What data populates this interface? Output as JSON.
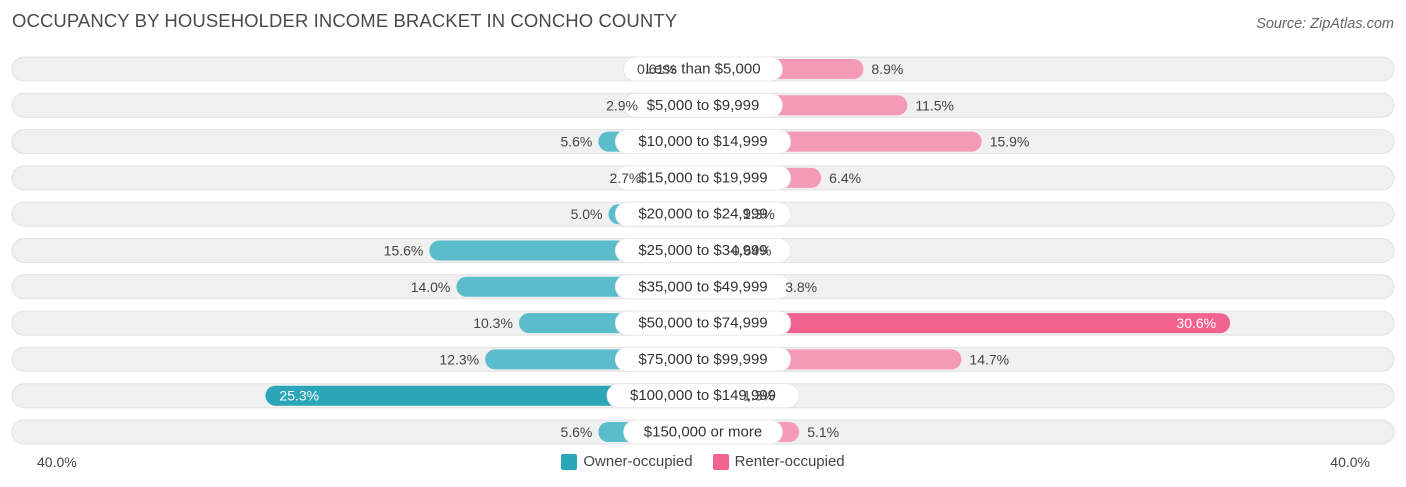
{
  "title": "OCCUPANCY BY HOUSEHOLDER INCOME BRACKET IN CONCHO COUNTY",
  "source": "Source: ZipAtlas.com",
  "axis": {
    "left_label": "40.0%",
    "right_label": "40.0%",
    "max": 40
  },
  "colors": {
    "owner": "#5bbccb",
    "owner_strong": "#2ba6b8",
    "renter": "#f49ab6",
    "renter_strong": "#f2648f",
    "track": "#f0f0f0"
  },
  "legend": {
    "owner": "Owner-occupied",
    "renter": "Renter-occupied"
  },
  "chart_data": {
    "type": "bar",
    "orientation": "horizontal-diverging",
    "title": "OCCUPANCY BY HOUSEHOLDER INCOME BRACKET IN CONCHO COUNTY",
    "xlim": [
      -40,
      40
    ],
    "categories": [
      "Less than $5,000",
      "$5,000 to $9,999",
      "$10,000 to $14,999",
      "$15,000 to $19,999",
      "$20,000 to $24,999",
      "$25,000 to $34,999",
      "$35,000 to $49,999",
      "$50,000 to $74,999",
      "$75,000 to $99,999",
      "$100,000 to $149,999",
      "$150,000 or more"
    ],
    "series": [
      {
        "name": "Owner-occupied",
        "values": [
          0.61,
          2.9,
          5.6,
          2.7,
          5.0,
          15.6,
          14.0,
          10.3,
          12.3,
          25.3,
          5.6
        ],
        "labels": [
          "0.61%",
          "2.9%",
          "5.6%",
          "2.7%",
          "5.0%",
          "15.6%",
          "14.0%",
          "10.3%",
          "12.3%",
          "25.3%",
          "5.6%"
        ]
      },
      {
        "name": "Renter-occupied",
        "values": [
          8.9,
          11.5,
          15.9,
          6.4,
          1.3,
          0.64,
          3.8,
          30.6,
          14.7,
          1.3,
          5.1
        ],
        "labels": [
          "8.9%",
          "11.5%",
          "15.9%",
          "6.4%",
          "1.3%",
          "0.64%",
          "3.8%",
          "30.6%",
          "14.7%",
          "1.3%",
          "5.1%"
        ]
      }
    ]
  }
}
